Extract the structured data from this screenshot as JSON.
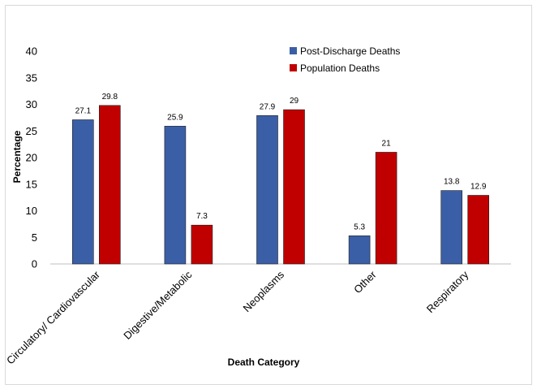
{
  "chart_data": {
    "type": "bar",
    "categories": [
      "Circulatory/ Cardiovascular",
      "Digestive/Metabolic",
      "Neoplasms",
      "Other",
      "Respiratory"
    ],
    "series": [
      {
        "name": "Post-Discharge Deaths",
        "values": [
          27.1,
          25.9,
          27.9,
          5.3,
          13.8
        ],
        "labels": [
          "27.1",
          "25.9",
          "27.9",
          "5.3",
          "13.8"
        ],
        "color": "#3b5fa6"
      },
      {
        "name": "Population Deaths",
        "values": [
          29.8,
          7.3,
          29,
          21,
          12.9
        ],
        "labels": [
          "29.8",
          "7.3",
          "29",
          "21",
          "12.9"
        ],
        "color": "#c00000"
      }
    ],
    "xlabel": "Death Category",
    "ylabel": "Percentage",
    "ylim": [
      0,
      40
    ],
    "yticks": [
      0,
      5,
      10,
      15,
      20,
      25,
      30,
      35,
      40
    ],
    "grid": false,
    "legend": "top-right"
  }
}
